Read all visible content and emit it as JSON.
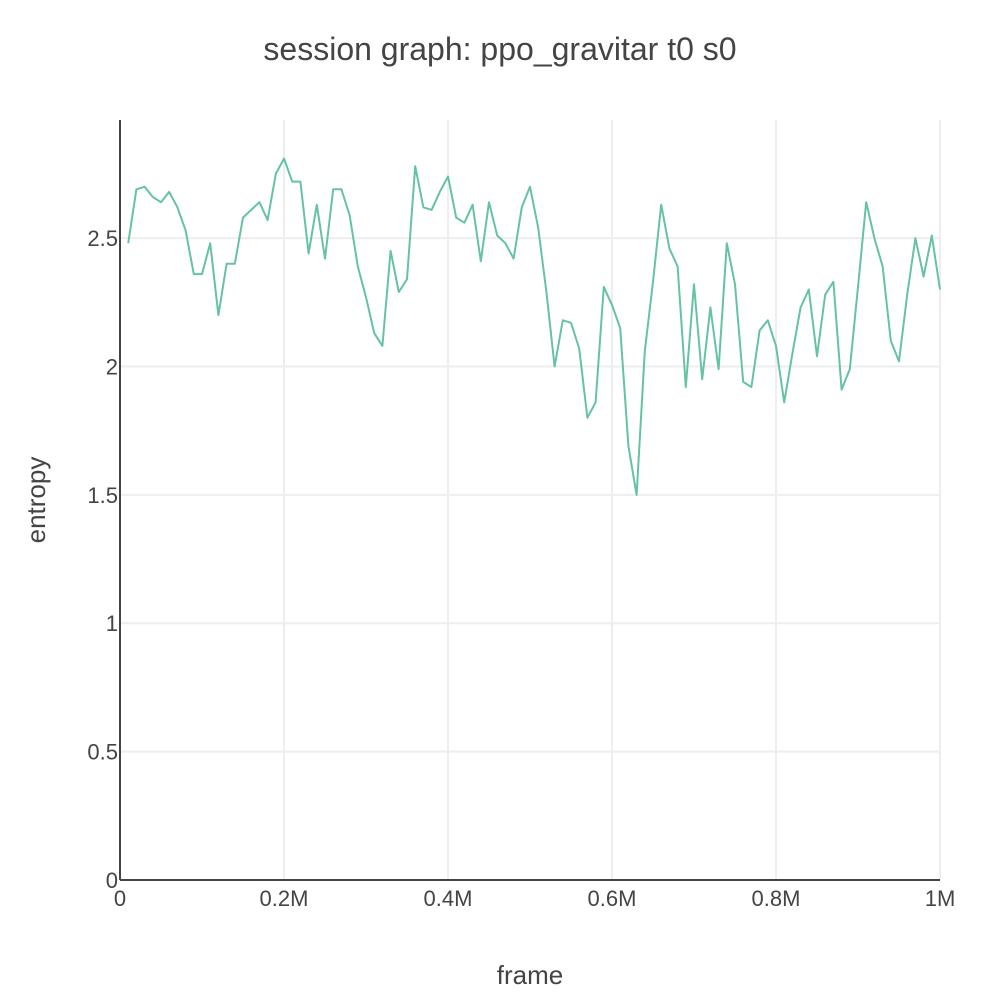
{
  "chart_data": {
    "type": "line",
    "title": "session graph: ppo_gravitar t0 s0",
    "xlabel": "frame",
    "ylabel": "entropy",
    "xlim": [
      0,
      1000000
    ],
    "ylim": [
      0,
      2.96
    ],
    "grid": true,
    "x_ticks": [
      {
        "value": 0,
        "label": "0"
      },
      {
        "value": 200000,
        "label": "0.2M"
      },
      {
        "value": 400000,
        "label": "0.4M"
      },
      {
        "value": 600000,
        "label": "0.6M"
      },
      {
        "value": 800000,
        "label": "0.8M"
      },
      {
        "value": 1000000,
        "label": "1M"
      }
    ],
    "y_ticks": [
      {
        "value": 0,
        "label": "0"
      },
      {
        "value": 0.5,
        "label": "0.5"
      },
      {
        "value": 1,
        "label": "1"
      },
      {
        "value": 1.5,
        "label": "1.5"
      },
      {
        "value": 2,
        "label": "2"
      },
      {
        "value": 2.5,
        "label": "2.5"
      }
    ],
    "series": [
      {
        "color": "#66c2a5",
        "x": [
          10000,
          20000,
          30000,
          40000,
          50000,
          60000,
          70000,
          80000,
          90000,
          100000,
          110000,
          120000,
          130000,
          140000,
          150000,
          160000,
          170000,
          180000,
          190000,
          200000,
          210000,
          220000,
          230000,
          240000,
          250000,
          260000,
          270000,
          280000,
          290000,
          300000,
          310000,
          320000,
          330000,
          340000,
          350000,
          360000,
          370000,
          380000,
          390000,
          400000,
          410000,
          420000,
          430000,
          440000,
          450000,
          460000,
          470000,
          480000,
          490000,
          500000,
          510000,
          520000,
          530000,
          540000,
          550000,
          560000,
          570000,
          580000,
          590000,
          600000,
          610000,
          620000,
          630000,
          640000,
          650000,
          660000,
          670000,
          680000,
          690000,
          700000,
          710000,
          720000,
          730000,
          740000,
          750000,
          760000,
          770000,
          780000,
          790000,
          800000,
          810000,
          820000,
          830000,
          840000,
          850000,
          860000,
          870000,
          880000,
          890000,
          900000,
          910000,
          920000,
          930000,
          940000,
          950000,
          960000,
          970000,
          980000,
          990000,
          1000000
        ],
        "y": [
          2.48,
          2.69,
          2.7,
          2.66,
          2.64,
          2.68,
          2.62,
          2.53,
          2.36,
          2.36,
          2.48,
          2.2,
          2.4,
          2.4,
          2.58,
          2.61,
          2.64,
          2.57,
          2.75,
          2.81,
          2.72,
          2.72,
          2.44,
          2.63,
          2.42,
          2.69,
          2.69,
          2.59,
          2.39,
          2.27,
          2.13,
          2.08,
          2.45,
          2.29,
          2.34,
          2.78,
          2.62,
          2.61,
          2.68,
          2.74,
          2.58,
          2.56,
          2.63,
          2.41,
          2.64,
          2.51,
          2.48,
          2.42,
          2.62,
          2.7,
          2.54,
          2.29,
          2.0,
          2.18,
          2.17,
          2.07,
          1.8,
          1.86,
          2.31,
          2.24,
          2.15,
          1.69,
          1.5,
          2.06,
          2.33,
          2.63,
          2.46,
          2.39,
          1.92,
          2.32,
          1.95,
          2.23,
          1.99,
          2.48,
          2.32,
          1.94,
          1.92,
          2.14,
          2.18,
          2.08,
          1.86,
          2.05,
          2.23,
          2.3,
          2.04,
          2.28,
          2.33,
          1.91,
          1.99,
          2.31,
          2.64,
          2.5,
          2.39,
          2.1,
          2.02,
          2.28,
          2.5,
          2.35,
          2.51,
          2.3
        ]
      }
    ]
  }
}
